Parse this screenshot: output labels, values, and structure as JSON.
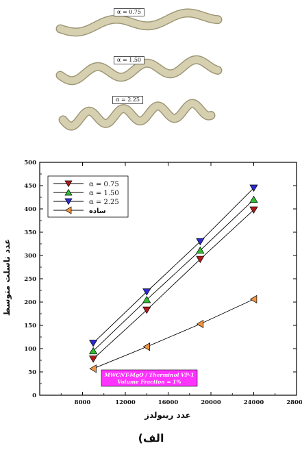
{
  "pipes": [
    {
      "label": "α = 0.75"
    },
    {
      "label": "α = 1.50"
    },
    {
      "label": "α = 2.25"
    }
  ],
  "caption": "الف)",
  "colors": {
    "pipe": "#d6d0b0",
    "pipe_shadow": "#9f9878",
    "annotation_bg": "#ff33ff"
  },
  "chart_data": {
    "type": "line",
    "xlabel": "عدد رینولدز",
    "ylabel": "عدد ناسلت متوسط",
    "xlim": [
      4000,
      28000
    ],
    "ylim": [
      0,
      500
    ],
    "x_ticks": [
      8000,
      12000,
      16000,
      20000,
      24000,
      28000
    ],
    "y_ticks": [
      0,
      50,
      100,
      150,
      200,
      250,
      300,
      350,
      400,
      450,
      500
    ],
    "x": [
      9000,
      14000,
      19000,
      24000
    ],
    "series": [
      {
        "name": "α = 0.75",
        "values": [
          78,
          183,
          292,
          398
        ],
        "color": "#b01818",
        "marker": "triangle-down"
      },
      {
        "name": "α = 1.50",
        "values": [
          95,
          205,
          311,
          420
        ],
        "color": "#33bb33",
        "marker": "triangle-up"
      },
      {
        "name": "α = 2.25",
        "values": [
          112,
          222,
          330,
          445
        ],
        "color": "#2b2bd0",
        "marker": "triangle-down"
      },
      {
        "name": "ساده",
        "values": [
          57,
          104,
          153,
          206
        ],
        "color": "#ee9544",
        "marker": "triangle-left"
      }
    ],
    "annotation": [
      "MWCNT-MgO / Therminol VP-1",
      "Volume Fraction = 1%"
    ],
    "grid": false,
    "legend_position": "top-left"
  }
}
